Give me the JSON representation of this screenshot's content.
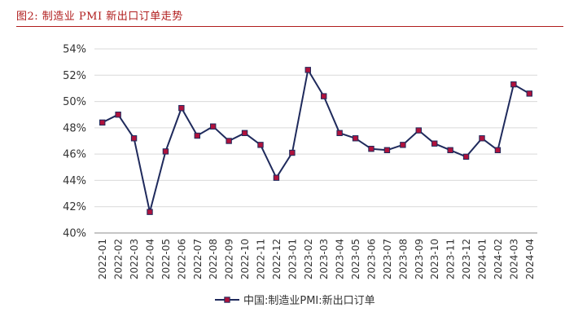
{
  "figure": {
    "title": "图2:   制造业 PMI 新出口订单走势"
  },
  "colors": {
    "title": "#b01c1c",
    "line": "#1f2a5c",
    "marker": "#b0123c",
    "grid": "#d9d9d9"
  },
  "chart_data": {
    "type": "line",
    "categories": [
      "2022-01",
      "2022-02",
      "2022-03",
      "2022-04",
      "2022-05",
      "2022-06",
      "2022-07",
      "2022-08",
      "2022-09",
      "2022-10",
      "2022-11",
      "2022-12",
      "2023-01",
      "2023-02",
      "2023-03",
      "2023-04",
      "2023-05",
      "2023-06",
      "2023-07",
      "2023-08",
      "2023-09",
      "2023-10",
      "2023-11",
      "2023-12",
      "2024-01",
      "2024-02",
      "2024-03",
      "2024-04"
    ],
    "series": [
      {
        "name": "中国:制造业PMI:新出口订单",
        "values": [
          48.4,
          49.0,
          47.2,
          41.6,
          46.2,
          49.5,
          47.4,
          48.1,
          47.0,
          47.6,
          46.7,
          44.2,
          46.1,
          52.4,
          50.4,
          47.6,
          47.2,
          46.4,
          46.3,
          46.7,
          47.8,
          46.8,
          46.3,
          45.8,
          47.2,
          46.3,
          51.3,
          50.6
        ]
      }
    ],
    "ylim": [
      40,
      54
    ],
    "yticks": [
      40,
      42,
      44,
      46,
      48,
      50,
      52,
      54
    ],
    "ytick_labels": [
      "40%",
      "42%",
      "44%",
      "46%",
      "48%",
      "50%",
      "52%",
      "54%"
    ],
    "grid": "horizontal",
    "legend_position": "bottom"
  }
}
